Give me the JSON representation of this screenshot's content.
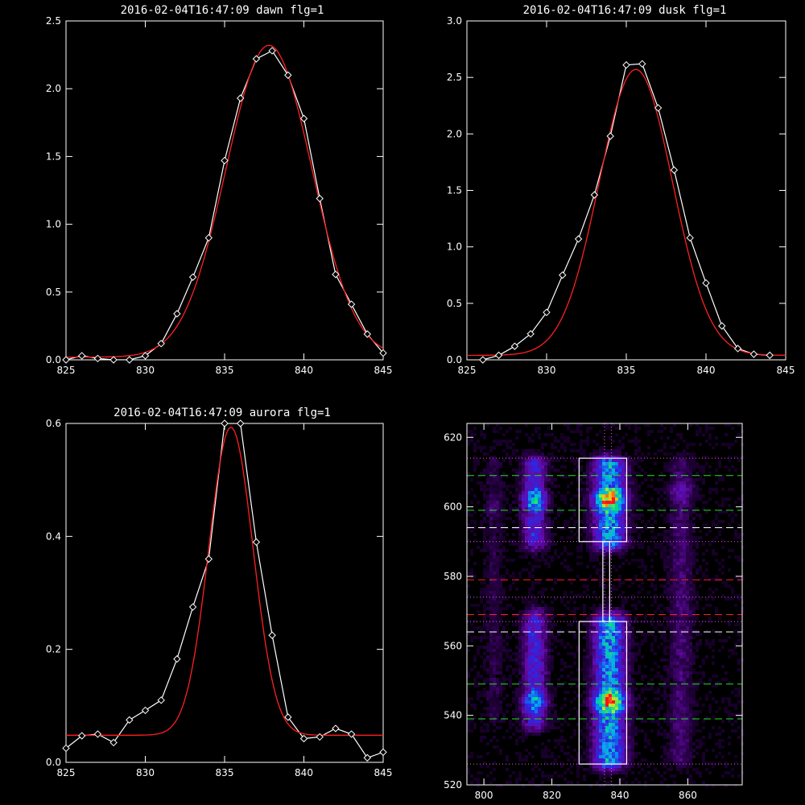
{
  "chart_data": [
    {
      "type": "line",
      "title": "2016-02-04T16:47:09 dawn flg=1",
      "xlim": [
        825,
        845
      ],
      "ylim": [
        0,
        2.5
      ],
      "xticks": [
        "825",
        "830",
        "835",
        "840",
        "845"
      ],
      "yticks": [
        "0.0",
        "0.5",
        "1.0",
        "1.5",
        "2.0",
        "2.5"
      ],
      "series": [
        {
          "style": "observed",
          "color": "#ffffff",
          "marker": "diamond",
          "x": [
            825,
            826,
            827,
            828,
            829,
            830,
            831,
            832,
            833,
            834,
            835,
            836,
            837,
            838,
            839,
            840,
            841,
            842,
            843,
            844,
            845
          ],
          "y": [
            0.0,
            0.03,
            0.01,
            0.0,
            0.0,
            0.03,
            0.12,
            0.34,
            0.61,
            0.9,
            1.47,
            1.93,
            2.22,
            2.28,
            2.1,
            1.78,
            1.19,
            0.63,
            0.41,
            0.19,
            0.05
          ]
        },
        {
          "style": "fit",
          "color": "#ff2020",
          "model": "gaussian",
          "center": 837.8,
          "sigma": 2.7,
          "amplitude": 2.3,
          "baseline": 0.02
        }
      ]
    },
    {
      "type": "line",
      "title": "2016-02-04T16:47:09 dusk flg=1",
      "xlim": [
        825,
        845
      ],
      "ylim": [
        0,
        3.0
      ],
      "xticks": [
        "825",
        "830",
        "835",
        "840",
        "845"
      ],
      "yticks": [
        "0.0",
        "0.5",
        "1.0",
        "1.5",
        "2.0",
        "2.5",
        "3.0"
      ],
      "series": [
        {
          "style": "observed",
          "color": "#ffffff",
          "marker": "diamond",
          "x": [
            826,
            827,
            828,
            829,
            830,
            831,
            832,
            833,
            834,
            835,
            836,
            837,
            838,
            839,
            840,
            841,
            842,
            843,
            844
          ],
          "y": [
            0.0,
            0.04,
            0.12,
            0.23,
            0.42,
            0.75,
            1.07,
            1.46,
            1.98,
            2.61,
            2.62,
            2.23,
            1.68,
            1.08,
            0.68,
            0.3,
            0.1,
            0.05,
            0.04
          ]
        },
        {
          "style": "fit",
          "color": "#ff2020",
          "model": "gaussian",
          "center": 835.6,
          "sigma": 2.3,
          "amplitude": 2.53,
          "baseline": 0.04
        }
      ]
    },
    {
      "type": "line",
      "title": "2016-02-04T16:47:09 aurora flg=1",
      "xlim": [
        825,
        845
      ],
      "ylim": [
        0,
        0.6
      ],
      "xticks": [
        "825",
        "830",
        "835",
        "840",
        "845"
      ],
      "yticks": [
        "0.0",
        "0.2",
        "0.4",
        "0.6"
      ],
      "series": [
        {
          "style": "observed",
          "color": "#ffffff",
          "marker": "diamond",
          "x": [
            825,
            826,
            827,
            828,
            829,
            830,
            831,
            832,
            833,
            834,
            835,
            836,
            837,
            838,
            839,
            840,
            841,
            842,
            843,
            844,
            845
          ],
          "y": [
            0.025,
            0.047,
            0.05,
            0.035,
            0.075,
            0.092,
            0.11,
            0.183,
            0.275,
            0.36,
            0.6,
            0.6,
            0.39,
            0.225,
            0.08,
            0.042,
            0.045,
            0.06,
            0.05,
            0.008,
            0.018
          ]
        },
        {
          "style": "fit",
          "color": "#ff2020",
          "model": "gaussian",
          "center": 835.4,
          "sigma": 1.4,
          "amplitude": 0.545,
          "baseline": 0.048
        }
      ]
    },
    {
      "type": "heatmap",
      "title": "",
      "xlim": [
        795,
        876
      ],
      "ylim": [
        520,
        624
      ],
      "xticks": [
        "800",
        "820",
        "840",
        "860"
      ],
      "yticks": [
        "520",
        "540",
        "560",
        "580",
        "600",
        "620"
      ],
      "colormap": "rainbow-on-black",
      "emission_columns": [
        {
          "x_center": 815,
          "x_width": 7,
          "y_ranges": [
            [
              538,
              568
            ],
            [
              590,
              612
            ]
          ],
          "peak_y": [
            544,
            602
          ],
          "strength": 0.6
        },
        {
          "x_center": 837,
          "x_width": 9,
          "y_ranges": [
            [
              527,
              567
            ],
            [
              590,
              612
            ]
          ],
          "peak_y": [
            544,
            602
          ],
          "strength": 1.0
        },
        {
          "x_center": 858,
          "x_width": 7,
          "y_ranges": [
            [
              528,
              612
            ]
          ],
          "peak_y": [
            604
          ],
          "strength": 0.25
        },
        {
          "x_center": 803,
          "x_width": 5,
          "y_ranges": [
            [
              540,
              612
            ]
          ],
          "peak_y": [
            600
          ],
          "strength": 0.15
        }
      ],
      "boxes": [
        {
          "x": [
            828,
            842
          ],
          "y": [
            590,
            614
          ],
          "color": "#ffffff"
        },
        {
          "x": [
            828,
            842
          ],
          "y": [
            526,
            567
          ],
          "color": "#ffffff"
        },
        {
          "x": [
            835,
            837
          ],
          "y": [
            567,
            590
          ],
          "color": "#ffffff"
        }
      ],
      "hlines": [
        {
          "y": 614,
          "color": "#e060e0",
          "style": "dotted"
        },
        {
          "y": 609,
          "color": "#20e020",
          "style": "dashed"
        },
        {
          "y": 599,
          "color": "#20e020",
          "style": "dashed"
        },
        {
          "y": 594,
          "color": "#ffffff",
          "style": "dashed"
        },
        {
          "y": 590,
          "color": "#e060e0",
          "style": "dotted"
        },
        {
          "y": 579,
          "color": "#ff2020",
          "style": "dashed"
        },
        {
          "y": 574,
          "color": "#e060e0",
          "style": "dotted"
        },
        {
          "y": 569,
          "color": "#ff2020",
          "style": "dashed"
        },
        {
          "y": 567,
          "color": "#e060e0",
          "style": "dotted"
        },
        {
          "y": 564,
          "color": "#ffffff",
          "style": "dashed"
        },
        {
          "y": 549,
          "color": "#20e020",
          "style": "dashed"
        },
        {
          "y": 539,
          "color": "#20e020",
          "style": "dashed"
        },
        {
          "y": 526,
          "color": "#e060e0",
          "style": "dotted"
        }
      ],
      "vlines": [
        {
          "x": 835.5,
          "color": "#e060e0",
          "style": "dotted"
        },
        {
          "x": 837.5,
          "color": "#e060e0",
          "style": "dotted"
        }
      ]
    }
  ]
}
